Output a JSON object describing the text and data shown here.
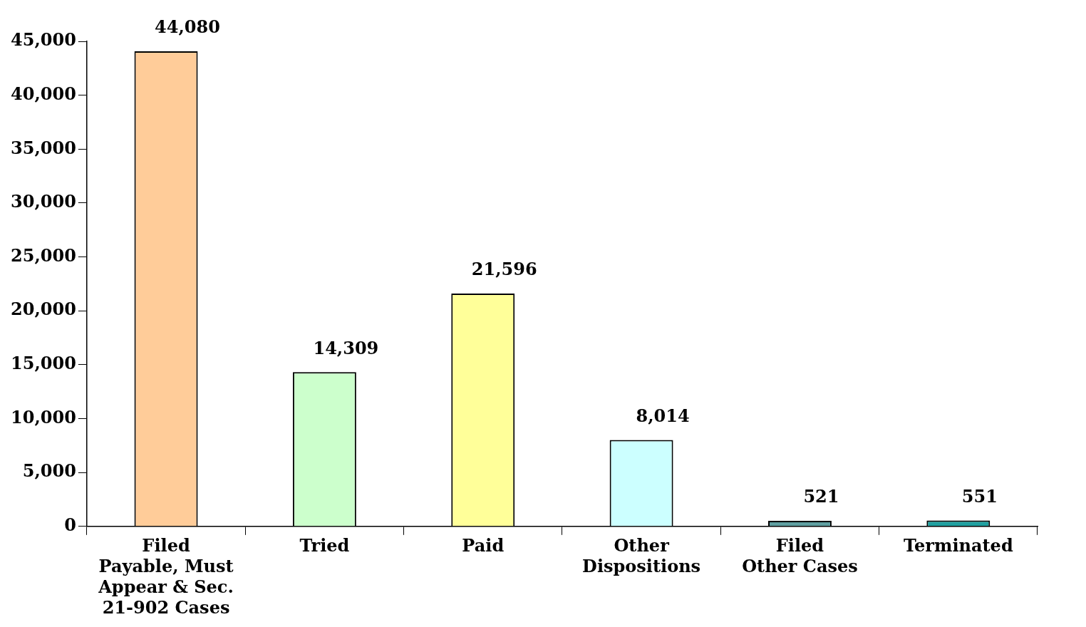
{
  "chart_data": {
    "type": "bar",
    "categories": [
      "Filed\nPayable, Must\nAppear & Sec.\n21-902 Cases",
      "Tried",
      "Paid",
      "Other\nDispositions",
      "Filed\nOther Cases",
      "Terminated"
    ],
    "values": [
      44080,
      14309,
      21596,
      8014,
      521,
      551
    ],
    "colors": [
      "#ffcc99",
      "#ccffcc",
      "#ffff99",
      "#ccffff",
      "#5f9ea0",
      "#20a0a0"
    ],
    "value_labels": [
      "44,080",
      "14,309",
      "21,596",
      "8,014",
      "521",
      "551"
    ],
    "ylim": [
      0,
      45000
    ],
    "yticks": [
      0,
      {
        "value": 5000,
        "label": "5,000"
      },
      {
        "value": 10000,
        "label": "10,000"
      },
      {
        "value": 15000,
        "label": "15,000"
      },
      {
        "value": 20000,
        "label": "20,000"
      },
      {
        "value": 25000,
        "label": "25,000"
      },
      {
        "value": 30000,
        "label": "30,000"
      },
      {
        "value": 35000,
        "label": "35,000"
      },
      {
        "value": 40000,
        "label": "40,000"
      },
      {
        "value": 45000,
        "label": "45,000"
      }
    ],
    "grid": false,
    "legend": false
  }
}
